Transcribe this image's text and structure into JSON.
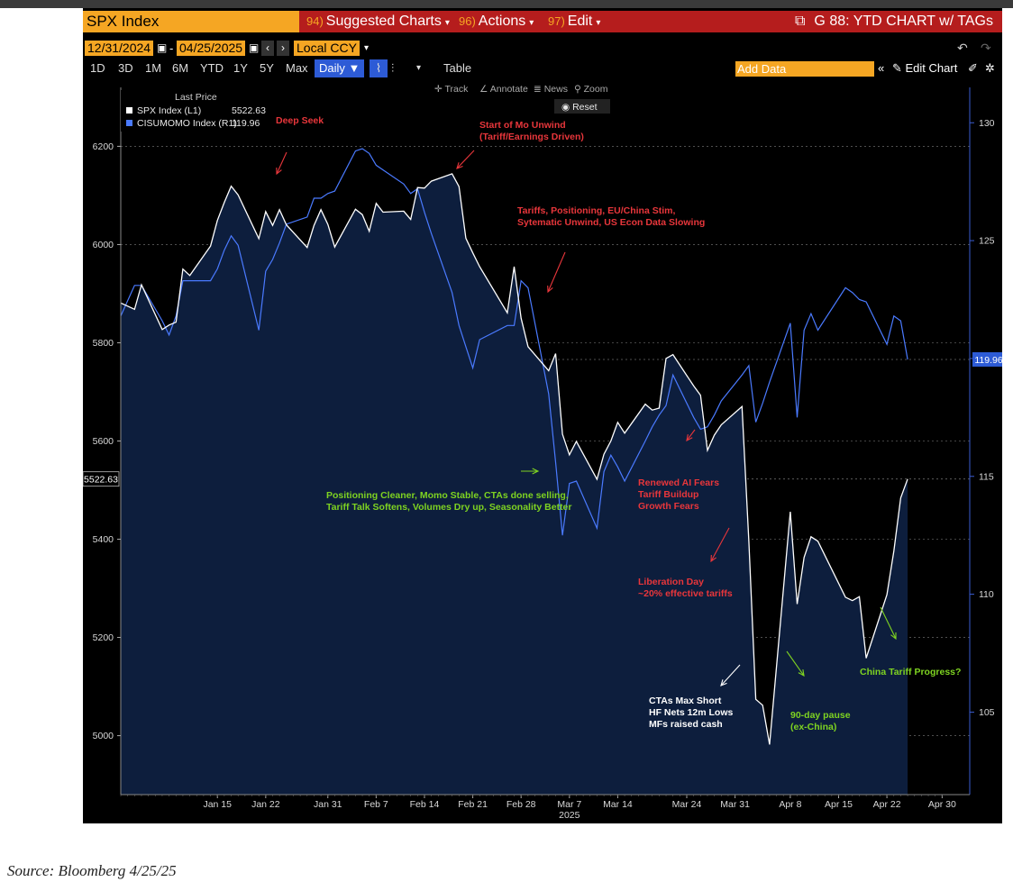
{
  "toolbar": {
    "ticker": "SPX Index",
    "menus": [
      {
        "num": "94)",
        "label": "Suggested Charts"
      },
      {
        "num": "96)",
        "label": "Actions"
      },
      {
        "num": "97)",
        "label": "Edit"
      }
    ],
    "chart_title": "G 88: YTD CHART w/ TAGs",
    "start_date": "12/31/2024",
    "end_date": "04/25/2025",
    "currency": "Local CCY",
    "periods": [
      "1D",
      "3D",
      "1M",
      "6M",
      "YTD",
      "1Y",
      "5Y",
      "Max"
    ],
    "frequency": "Daily",
    "table_label": "Table",
    "add_data_placeholder": "Add Data",
    "edit_chart_label": "Edit Chart",
    "tools": [
      "Track",
      "Annotate",
      "News",
      "Zoom"
    ],
    "reset_label": "Reset"
  },
  "legend": {
    "header": "Last Price",
    "items": [
      {
        "label": "SPX Index  (L1)",
        "value": "5522.63",
        "color": "#ffffff"
      },
      {
        "label": "CISUMOMO Index  (R1)",
        "value": "119.96",
        "color": "#4a7aff"
      }
    ]
  },
  "colors": {
    "spx_line": "#ffffff",
    "spx_fill": "#0d1e3d",
    "mom_line": "#4a7aff",
    "annotation_red": "#e8363b",
    "annotation_green": "#7ed321",
    "annotation_white": "#ffffff"
  },
  "chart_data": {
    "type": "area",
    "x_label": "2025",
    "x_tick_labels": [
      "Jan 15",
      "Jan 22",
      "Jan 31",
      "Feb 7",
      "Feb 14",
      "Feb 21",
      "Feb 28",
      "Mar 7",
      "Mar 14",
      "Mar 24",
      "Mar 31",
      "Apr 8",
      "Apr 15",
      "Apr 22",
      "Apr 30"
    ],
    "x_tick_days": [
      14,
      21,
      30,
      37,
      44,
      51,
      58,
      65,
      72,
      82,
      89,
      97,
      104,
      111,
      119
    ],
    "x_range_days": [
      0,
      123
    ],
    "y_left_ticks": [
      5000,
      5200,
      5400,
      5600,
      5800,
      6000,
      6200
    ],
    "y_left_range": [
      4880,
      6320
    ],
    "y_right_ticks": [
      105,
      110,
      115,
      120,
      125,
      130
    ],
    "y_right_range": [
      101.5,
      131.5
    ],
    "grid": "dashed-horizontal",
    "legend_position": "top-left",
    "series": [
      {
        "name": "SPX Index",
        "axis": "left",
        "last_value": 5522.63,
        "x": [
          0,
          2,
          3,
          6,
          7,
          8,
          9,
          10,
          13,
          14,
          15,
          16,
          17,
          20,
          21,
          22,
          23,
          24,
          27,
          28,
          29,
          30,
          31,
          34,
          35,
          36,
          37,
          38,
          41,
          42,
          43,
          44,
          45,
          48,
          49,
          50,
          51,
          52,
          56,
          57,
          58,
          59,
          62,
          63,
          64,
          65,
          66,
          69,
          70,
          71,
          72,
          73,
          76,
          77,
          78,
          79,
          80,
          83,
          84,
          85,
          86,
          87,
          90,
          91,
          92,
          93,
          94,
          97,
          98,
          99,
          100,
          101,
          105,
          106,
          107,
          108,
          111,
          112,
          113,
          114
        ],
        "values": [
          5881,
          5868,
          5918,
          5827,
          5836,
          5842,
          5950,
          5937,
          5997,
          6049,
          6086,
          6119,
          6101,
          6012,
          6067,
          6039,
          6071,
          6040,
          5994,
          6039,
          6071,
          6041,
          5995,
          6072,
          6061,
          6027,
          6084,
          6066,
          6068,
          6051,
          6116,
          6115,
          6129,
          6144,
          6118,
          6013,
          5983,
          5955,
          5861,
          5955,
          5850,
          5792,
          5743,
          5778,
          5614,
          5572,
          5599,
          5522,
          5573,
          5600,
          5638,
          5616,
          5675,
          5663,
          5667,
          5768,
          5776,
          5712,
          5693,
          5581,
          5612,
          5633,
          5670,
          5396,
          5074,
          5062,
          4982,
          5456,
          5268,
          5363,
          5405,
          5396,
          5282,
          5275,
          5283,
          5158,
          5287,
          5376,
          5484,
          5522.63
        ]
      },
      {
        "name": "CISUMOMO Index",
        "axis": "right",
        "last_value": 119.96,
        "x": [
          0,
          2,
          3,
          6,
          7,
          8,
          9,
          10,
          13,
          14,
          15,
          16,
          17,
          20,
          21,
          22,
          23,
          24,
          27,
          28,
          29,
          30,
          31,
          34,
          35,
          36,
          37,
          38,
          41,
          42,
          43,
          44,
          45,
          48,
          49,
          50,
          51,
          52,
          56,
          57,
          58,
          59,
          62,
          63,
          64,
          65,
          66,
          69,
          70,
          71,
          72,
          73,
          76,
          77,
          78,
          79,
          80,
          83,
          84,
          85,
          86,
          87,
          90,
          91,
          92,
          93,
          94,
          97,
          98,
          99,
          100,
          101,
          105,
          106,
          107,
          108,
          111,
          112,
          113,
          114
        ],
        "values": [
          121.8,
          123.1,
          123.1,
          121.6,
          121.0,
          121.8,
          123.3,
          123.3,
          123.3,
          123.8,
          124.6,
          125.2,
          124.8,
          121.2,
          123.7,
          124.2,
          124.9,
          125.7,
          126.0,
          126.8,
          126.8,
          127.0,
          127.1,
          128.8,
          128.9,
          128.7,
          128.2,
          128.0,
          127.4,
          127.0,
          127.2,
          126.2,
          125.3,
          122.8,
          121.4,
          120.5,
          119.6,
          120.8,
          121.4,
          121.4,
          123.3,
          123.0,
          118.5,
          115.6,
          112.5,
          114.7,
          114.8,
          112.8,
          115.2,
          115.9,
          115.4,
          114.8,
          116.5,
          117.1,
          117.6,
          118.0,
          119.3,
          117.5,
          117.0,
          117.1,
          117.6,
          118.2,
          119.3,
          119.7,
          117.3,
          118.1,
          119.0,
          121.5,
          117.5,
          121.2,
          121.9,
          121.2,
          123.0,
          122.8,
          122.5,
          122.4,
          120.6,
          121.8,
          121.6,
          119.96
        ]
      }
    ],
    "annotations": [
      {
        "text": "Deep Seek",
        "color": "red"
      },
      {
        "text": "Start of Mo Unwind\n(Tariff/Earnings Driven)",
        "color": "red"
      },
      {
        "text": "Tariffs, Positioning, EU/China Stim,\nSytematic Unwind, US Econ Data Slowing",
        "color": "red"
      },
      {
        "text": "Positioning Cleaner, Momo Stable, CTAs done selling,\nTariff Talk Softens, Volumes Dry up, Seasonality Better",
        "color": "green"
      },
      {
        "text": "Renewed AI Fears\nTariff Buildup\nGrowth Fears",
        "color": "red"
      },
      {
        "text": "Liberation Day\n~20% effective tariffs",
        "color": "red"
      },
      {
        "text": "CTAs Max Short\nHF Nets 12m Lows\nMFs raised cash",
        "color": "white"
      },
      {
        "text": "90-day pause\n(ex-China)",
        "color": "green"
      },
      {
        "text": "China Tariff Progress?",
        "color": "green"
      }
    ]
  },
  "source": "Source: Bloomberg 4/25/25"
}
